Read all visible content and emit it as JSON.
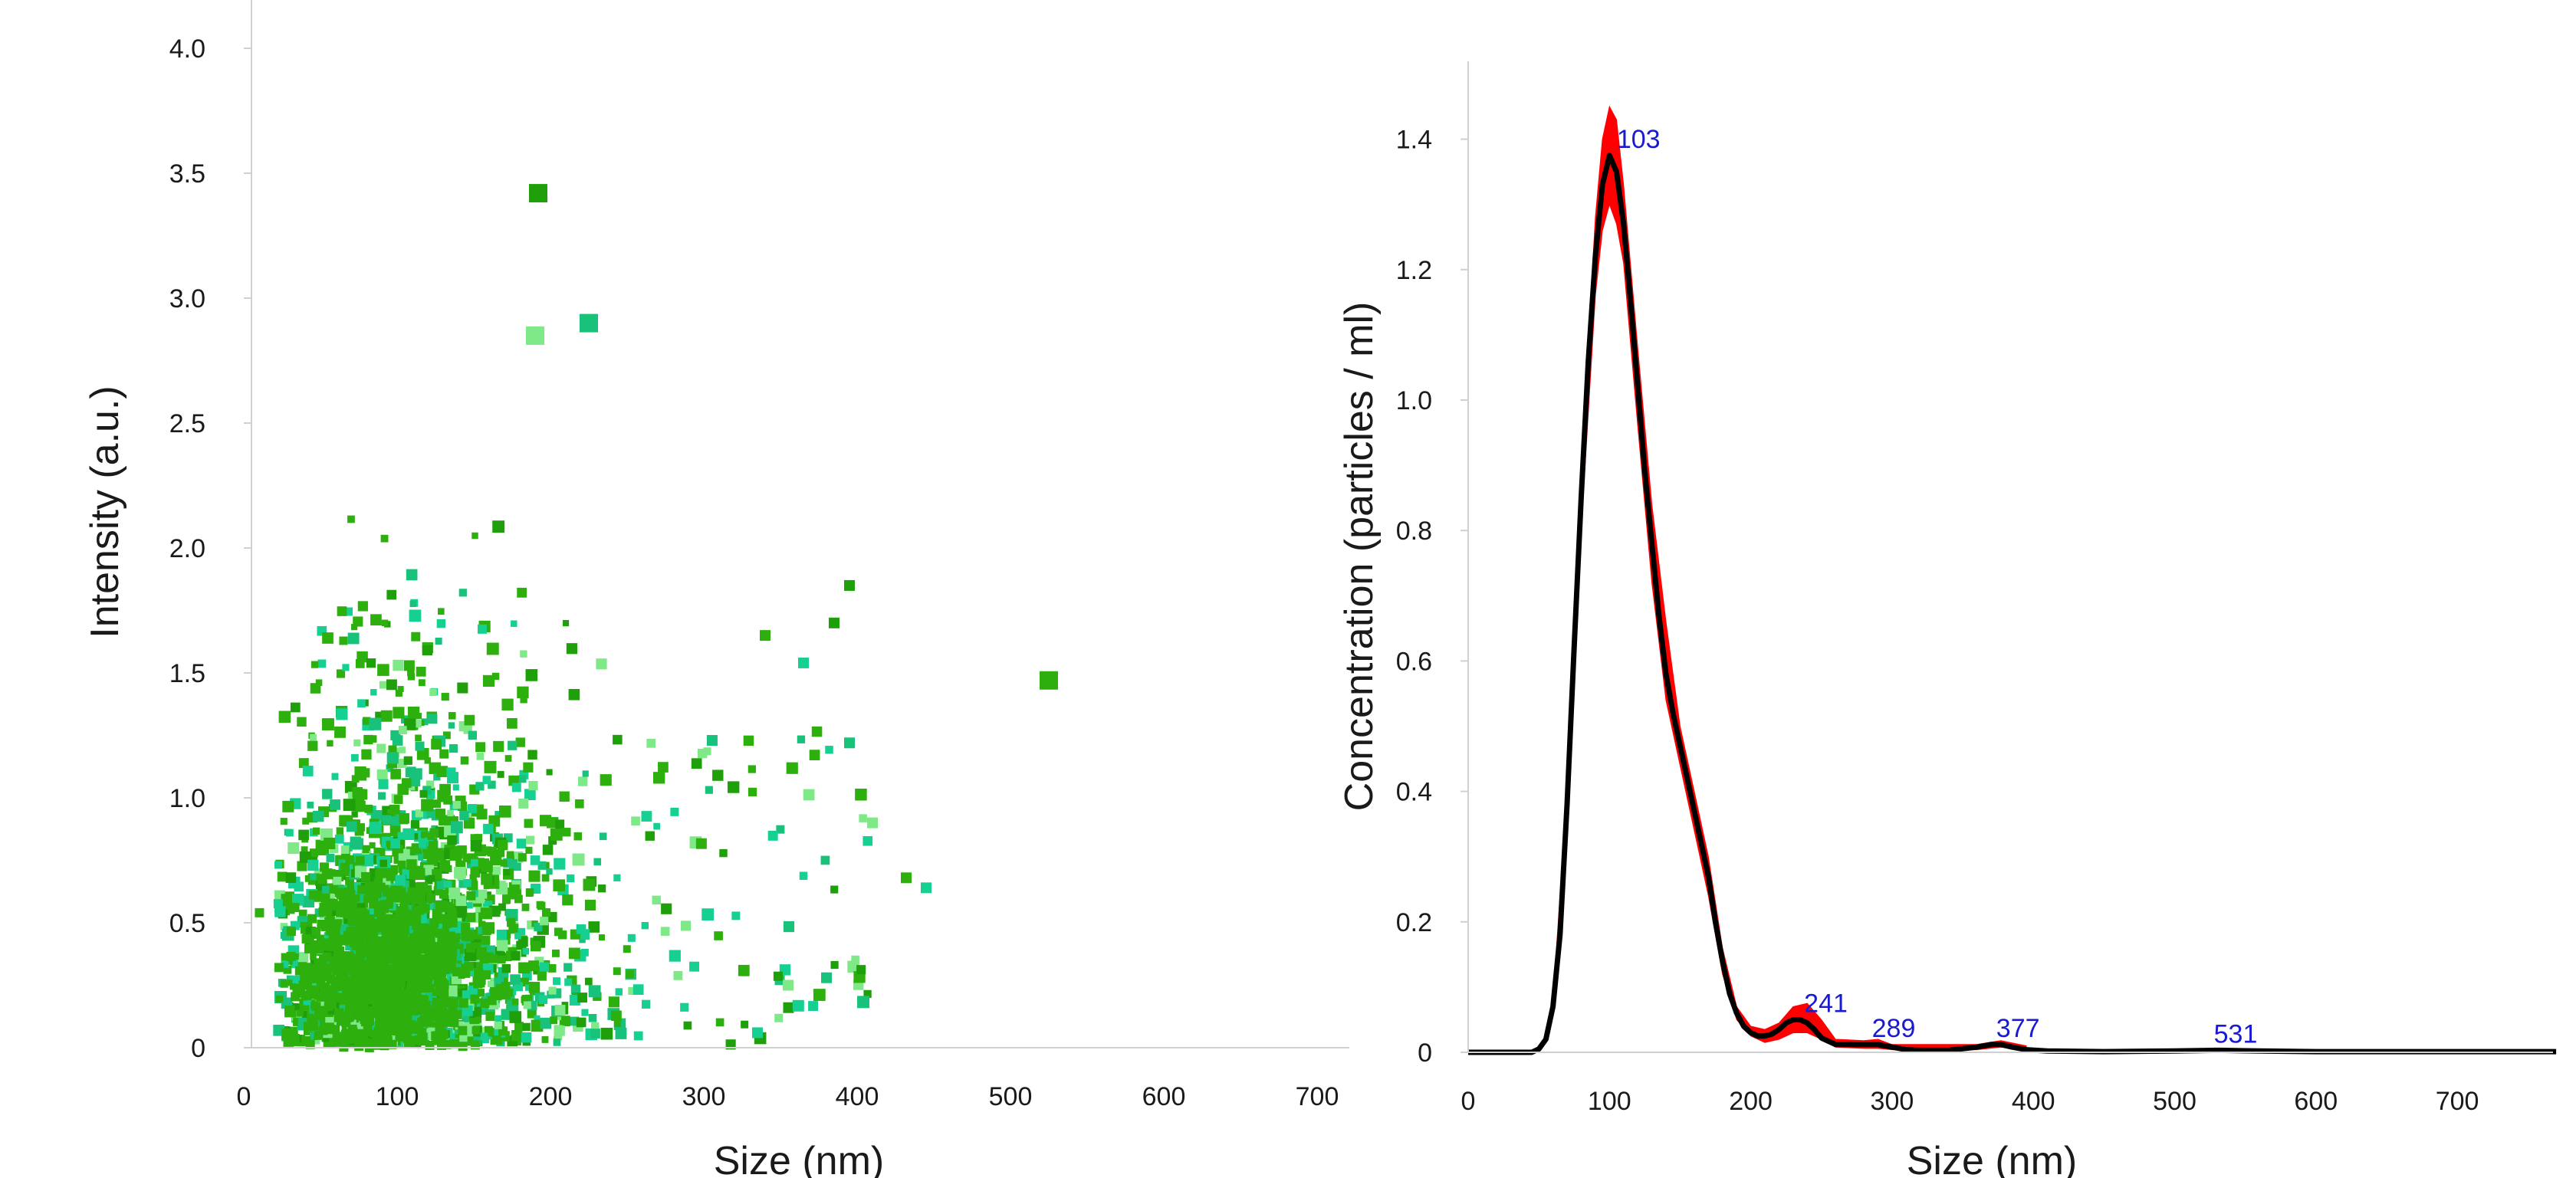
{
  "chart_data": [
    {
      "type": "scatter",
      "xlabel": "Size (nm)",
      "ylabel": "Intensity (a.u.)",
      "xlim": [
        0,
        720
      ],
      "ylim": [
        0,
        4.0
      ],
      "x_ticks": [
        0,
        100,
        200,
        300,
        400,
        500,
        600,
        700
      ],
      "y_ticks": [
        "0",
        "0.5",
        "1.0",
        "1.5",
        "2.0",
        "2.5",
        "3.0",
        "3.5",
        "4.0"
      ],
      "grid": false,
      "legend": "none",
      "colors": [
        "#2db00e",
        "#1fa00a",
        "#19c27a",
        "#7fe887",
        "#15d090"
      ],
      "notable_points": [
        {
          "x": 525,
          "y": 1.47
        },
        {
          "x": 192,
          "y": 3.42
        },
        {
          "x": 225,
          "y": 2.9
        },
        {
          "x": 190,
          "y": 2.85
        },
        {
          "x": 445,
          "y": 0.64
        },
        {
          "x": 432,
          "y": 0.68
        },
        {
          "x": 395,
          "y": 1.85
        },
        {
          "x": 395,
          "y": 1.22
        },
        {
          "x": 410,
          "y": 0.9
        },
        {
          "x": 365,
          "y": 1.54
        },
        {
          "x": 340,
          "y": 1.65
        },
        {
          "x": 385,
          "y": 1.7
        },
        {
          "x": 380,
          "y": 0.28
        },
        {
          "x": 355,
          "y": 0.25
        },
        {
          "x": 335,
          "y": 0.06
        }
      ],
      "bulk": {
        "x_range": [
          22,
          300
        ],
        "y_range": [
          0.02,
          2.2
        ],
        "densest_x": 100,
        "densest_y": 0.35
      }
    },
    {
      "type": "line",
      "xlabel": "Size (nm)",
      "ylabel": "Concentration (particles / ml)",
      "xlim": [
        0,
        770
      ],
      "ylim": [
        0,
        1.5
      ],
      "x_ticks": [
        0,
        100,
        200,
        300,
        400,
        500,
        600,
        700
      ],
      "y_ticks": [
        "0",
        "0.2",
        "0.4",
        "0.6",
        "0.8",
        "1.0",
        "1.2",
        "1.4"
      ],
      "grid": false,
      "series": [
        {
          "color": "#000000",
          "x": [
            0,
            45,
            50,
            55,
            60,
            65,
            70,
            75,
            80,
            85,
            90,
            95,
            100,
            105,
            110,
            115,
            120,
            125,
            130,
            135,
            140,
            145,
            150,
            155,
            160,
            165,
            170,
            175,
            180,
            185,
            190,
            195,
            200,
            205,
            210,
            215,
            220,
            225,
            230,
            235,
            240,
            245,
            250,
            260,
            270,
            280,
            290,
            300,
            310,
            320,
            340,
            360,
            370,
            377,
            385,
            395,
            410,
            450,
            500,
            531,
            560,
            600,
            770
          ],
          "y": [
            0,
            0.0,
            0.005,
            0.02,
            0.07,
            0.18,
            0.38,
            0.62,
            0.85,
            1.06,
            1.22,
            1.33,
            1.375,
            1.35,
            1.27,
            1.15,
            1.02,
            0.89,
            0.78,
            0.67,
            0.58,
            0.52,
            0.47,
            0.42,
            0.37,
            0.32,
            0.27,
            0.2,
            0.14,
            0.09,
            0.06,
            0.04,
            0.03,
            0.025,
            0.025,
            0.028,
            0.035,
            0.045,
            0.05,
            0.05,
            0.045,
            0.035,
            0.022,
            0.012,
            0.012,
            0.012,
            0.012,
            0.008,
            0.004,
            0.003,
            0.003,
            0.008,
            0.012,
            0.012,
            0.008,
            0.004,
            0.002,
            0.001,
            0.002,
            0.003,
            0.002,
            0.001,
            0.001
          ]
        }
      ],
      "error_band": {
        "color": "#ff0000",
        "x": [
          60,
          70,
          80,
          90,
          95,
          100,
          105,
          110,
          120,
          130,
          140,
          150,
          160,
          170,
          180,
          190,
          200,
          210,
          220,
          230,
          240,
          250,
          260,
          280,
          290,
          300,
          360,
          377,
          395
        ],
        "upper": [
          0.08,
          0.4,
          0.9,
          1.28,
          1.4,
          1.45,
          1.43,
          1.33,
          1.08,
          0.84,
          0.66,
          0.5,
          0.4,
          0.3,
          0.16,
          0.07,
          0.04,
          0.035,
          0.045,
          0.07,
          0.075,
          0.05,
          0.02,
          0.018,
          0.02,
          0.012,
          0.012,
          0.018,
          0.01
        ],
        "lower": [
          0.06,
          0.36,
          0.8,
          1.16,
          1.26,
          1.3,
          1.27,
          1.21,
          0.96,
          0.72,
          0.54,
          0.44,
          0.34,
          0.24,
          0.12,
          0.05,
          0.025,
          0.015,
          0.02,
          0.03,
          0.03,
          0.02,
          0.008,
          0.006,
          0.006,
          0.004,
          0.004,
          0.008,
          0.004
        ]
      },
      "peak_labels": [
        {
          "x": 103,
          "y": 1.375,
          "text": "103"
        },
        {
          "x": 241,
          "y": 0.05,
          "text": "241"
        },
        {
          "x": 289,
          "y": 0.012,
          "text": "289"
        },
        {
          "x": 377,
          "y": 0.012,
          "text": "377"
        },
        {
          "x": 531,
          "y": 0.003,
          "text": "531"
        }
      ],
      "peak_label_color": "#1a1ad0"
    }
  ]
}
